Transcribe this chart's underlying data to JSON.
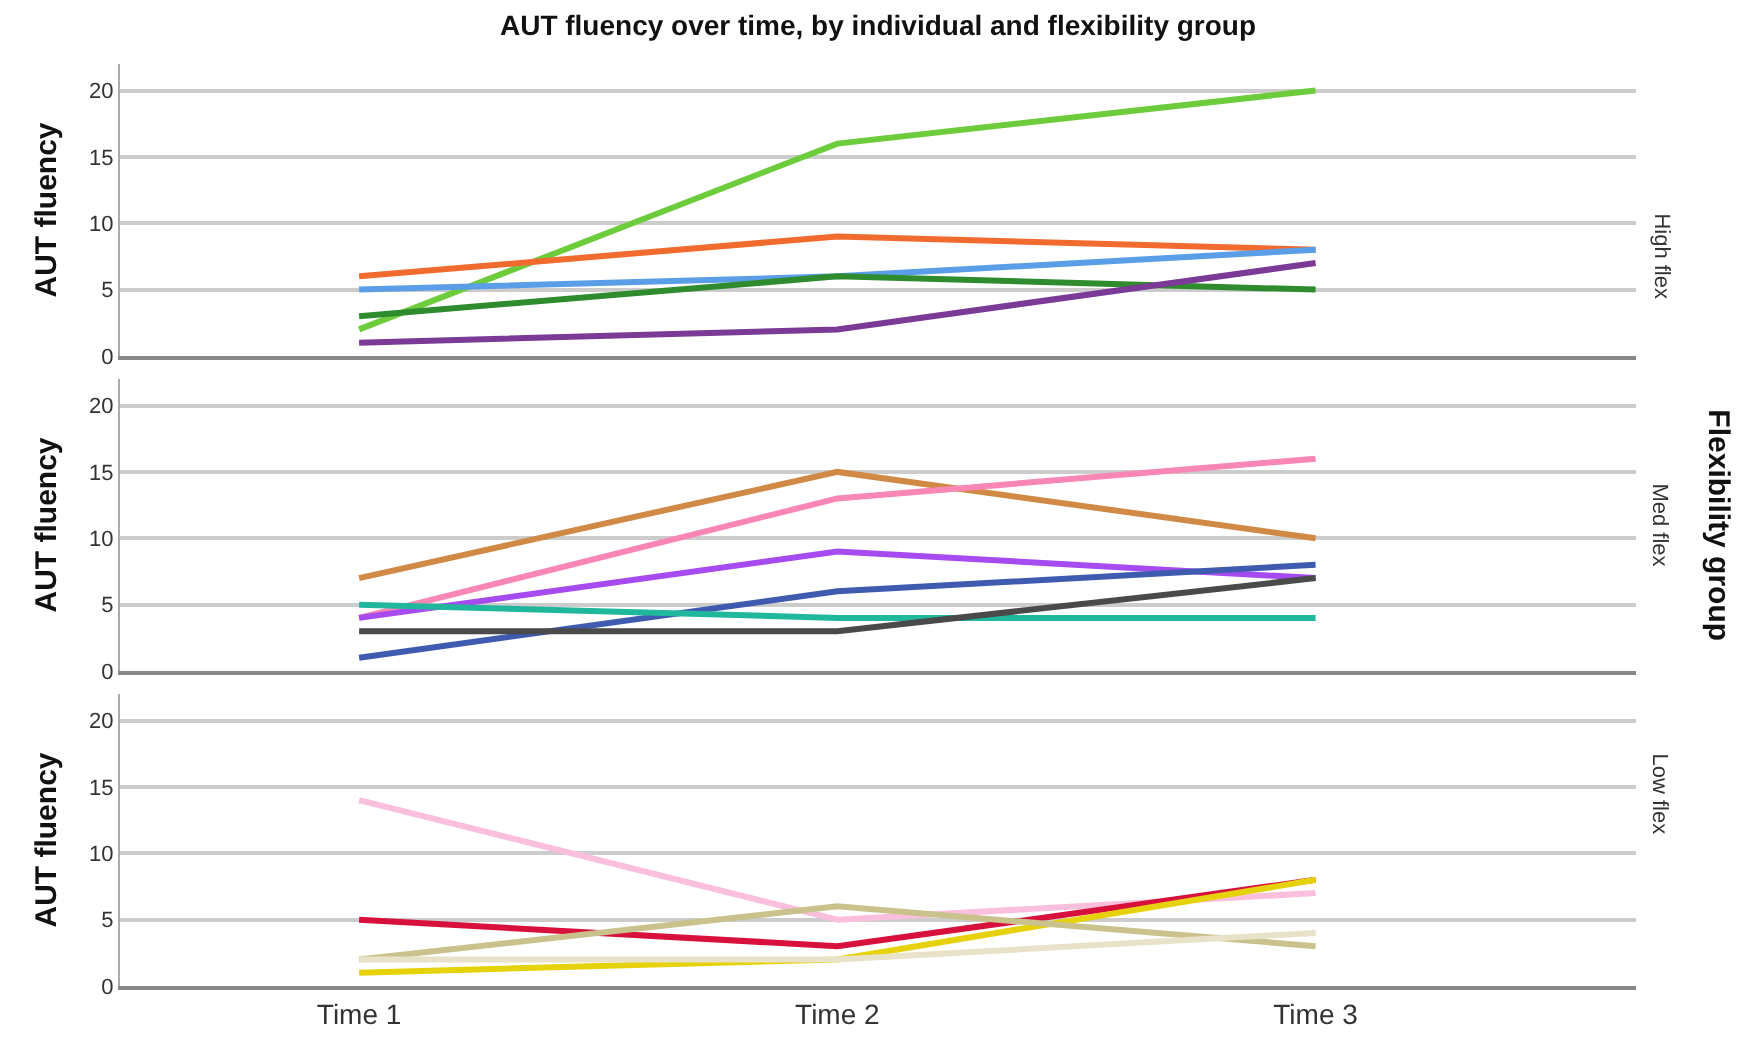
{
  "chart_data": [
    {
      "type": "line",
      "title": "AUT fluency over time, by individual and flexibility group",
      "ylabel": "AUT fluency",
      "y2label": "High flex",
      "categories": [
        null,
        null,
        null
      ],
      "ylim": [
        0,
        22
      ],
      "yticks": [
        0,
        5,
        10,
        15,
        20
      ],
      "grid": "y",
      "tick_labels": "y",
      "series": [
        {
          "color": "#6ccc3c",
          "values": [
            2,
            16,
            20
          ]
        },
        {
          "color": "#f26b2e",
          "values": [
            6,
            9,
            8
          ]
        },
        {
          "color": "#5b9ee8",
          "values": [
            5,
            6,
            8
          ]
        },
        {
          "color": "#2e8b2e",
          "values": [
            3,
            6,
            5
          ]
        },
        {
          "color": "#7a3a96",
          "values": [
            1,
            2,
            7
          ]
        }
      ]
    },
    {
      "type": "line",
      "ylabel": "AUT fluency",
      "y2label": "Med flex",
      "annotations": [
        "Flexibility group"
      ],
      "categories": [
        null,
        null,
        null
      ],
      "ylim": [
        0,
        22
      ],
      "yticks": [
        0,
        5,
        10,
        15,
        20
      ],
      "grid": "y",
      "tick_labels": "y",
      "series": [
        {
          "color": "#d08a46",
          "values": [
            7,
            15,
            10
          ]
        },
        {
          "color": "#f987b6",
          "values": [
            4,
            13,
            16
          ]
        },
        {
          "color": "#a64bf0",
          "values": [
            4,
            9,
            7
          ]
        },
        {
          "color": "#3f5bb0",
          "values": [
            1,
            6,
            8
          ]
        },
        {
          "color": "#1fb89c",
          "values": [
            5,
            4,
            4
          ]
        },
        {
          "color": "#4a4a4a",
          "values": [
            3,
            3,
            7
          ]
        }
      ]
    },
    {
      "type": "line",
      "ylabel": "AUT fluency",
      "y2label": "Low flex",
      "categories": [
        "Time 1",
        "Time 2",
        "Time 3"
      ],
      "ylim": [
        0,
        22
      ],
      "yticks": [
        0,
        5,
        10,
        15,
        20
      ],
      "grid": "y",
      "series": [
        {
          "color": "#f9bfdc",
          "values": [
            14,
            5,
            7
          ]
        },
        {
          "color": "#d8103c",
          "values": [
            5,
            3,
            8
          ]
        },
        {
          "color": "#e6d20a",
          "values": [
            1,
            2,
            8
          ]
        },
        {
          "color": "#c9c28c",
          "values": [
            2,
            6,
            3
          ]
        },
        {
          "color": "#e8e2c8",
          "values": [
            2,
            2,
            4
          ]
        }
      ]
    }
  ]
}
